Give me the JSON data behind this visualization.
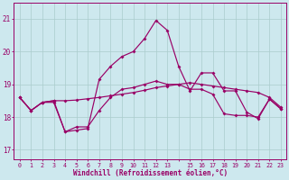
{
  "xlabel": "Windchill (Refroidissement éolien,°C)",
  "background_color": "#cde8ee",
  "grid_color": "#aacccc",
  "line_color": "#990066",
  "x_hours": [
    0,
    1,
    2,
    3,
    4,
    5,
    6,
    7,
    8,
    9,
    10,
    11,
    12,
    13,
    14,
    15,
    16,
    17,
    18,
    19,
    20,
    21,
    22,
    23
  ],
  "line1": [
    18.6,
    18.2,
    18.45,
    18.45,
    17.55,
    17.6,
    17.65,
    19.15,
    19.55,
    19.85,
    20.0,
    20.4,
    20.95,
    20.65,
    19.55,
    18.8,
    19.35,
    19.35,
    18.8,
    18.8,
    18.15,
    17.95,
    18.55,
    18.25
  ],
  "line2": [
    18.6,
    18.2,
    18.45,
    18.5,
    18.5,
    18.52,
    18.56,
    18.6,
    18.65,
    18.7,
    18.75,
    18.82,
    18.9,
    18.95,
    19.0,
    19.05,
    19.0,
    18.95,
    18.9,
    18.85,
    18.8,
    18.75,
    18.6,
    18.3
  ],
  "line3": [
    18.6,
    18.2,
    18.45,
    18.5,
    17.55,
    17.7,
    17.7,
    18.2,
    18.6,
    18.85,
    18.9,
    19.0,
    19.1,
    19.0,
    19.0,
    18.85,
    18.85,
    18.7,
    18.1,
    18.05,
    18.05,
    18.0,
    18.55,
    18.25
  ],
  "ylim": [
    16.7,
    21.5
  ],
  "yticks": [
    17,
    18,
    19,
    20,
    21
  ],
  "xtick_labels": [
    "0",
    "1",
    "2",
    "3",
    "4",
    "5",
    "6",
    "7",
    "8",
    "9",
    "10",
    "11",
    "12",
    "13",
    "",
    "15",
    "16",
    "17",
    "18",
    "19",
    "20",
    "21",
    "22",
    "23"
  ]
}
